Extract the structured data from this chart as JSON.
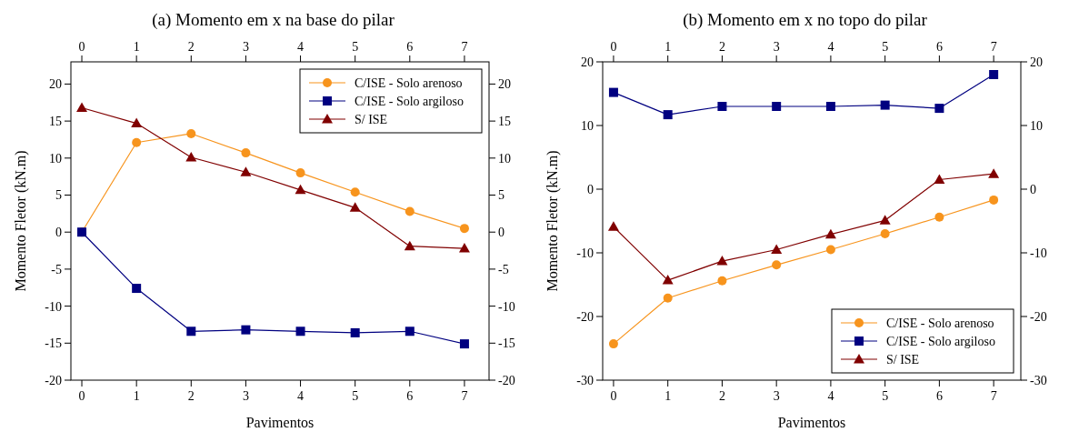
{
  "chart_data": [
    {
      "type": "line",
      "title": "(a) Momento em x na base do pilar",
      "xlabel": "Pavimentos",
      "ylabel": "Momento Fletor (kN.m)",
      "xlim": [
        -0.2,
        7.45
      ],
      "xticks": [
        0,
        1,
        2,
        3,
        4,
        5,
        6,
        7
      ],
      "x2lim": [
        -0.2,
        7.45
      ],
      "x2ticks": [
        0,
        1,
        2,
        3,
        4,
        5,
        6,
        7
      ],
      "ylim": [
        -20,
        23
      ],
      "yticks": [
        -20,
        -15,
        -10,
        -5,
        0,
        5,
        10,
        15,
        20
      ],
      "y2lim": [
        -20,
        23
      ],
      "y2ticks": [
        -20,
        -15,
        -10,
        -5,
        0,
        5,
        10,
        15,
        20
      ],
      "x": [
        0,
        1,
        2,
        3,
        4,
        5,
        6,
        7
      ],
      "legend": "top right",
      "grid": false,
      "line_style": "solid",
      "series": [
        {
          "name": "C/ISE - Solo arenoso",
          "color": "#f7941d",
          "marker": "circle",
          "values": [
            0,
            12.1,
            13.3,
            10.7,
            8,
            5.4,
            2.8,
            0.5
          ]
        },
        {
          "name": "C/ISE - Solo argiloso",
          "color": "#000080",
          "marker": "square",
          "values": [
            0,
            -7.6,
            -13.4,
            -13.2,
            -13.4,
            -13.6,
            -13.4,
            -15.1
          ]
        },
        {
          "name": "S/ ISE",
          "color": "#800000",
          "marker": "triangle",
          "values": [
            16.8,
            14.7,
            10.1,
            8.1,
            5.7,
            3.3,
            -1.9,
            -2.2
          ]
        }
      ]
    },
    {
      "type": "line",
      "title": "(b) Momento em x no topo do pilar",
      "xlabel": "Pavimentos",
      "ylabel": "Momento Fletor (kN.m)",
      "xlim": [
        -0.2,
        7.5
      ],
      "xticks": [
        0,
        1,
        2,
        3,
        4,
        5,
        6,
        7
      ],
      "x2lim": [
        -0.2,
        7.5
      ],
      "x2ticks": [
        0,
        1,
        2,
        3,
        4,
        5,
        6,
        7
      ],
      "ylim": [
        -30,
        20
      ],
      "yticks": [
        -30,
        -20,
        -10,
        0,
        10,
        20
      ],
      "y2lim": [
        -30,
        20
      ],
      "y2ticks": [
        -30,
        -20,
        -10,
        0,
        10,
        20
      ],
      "x": [
        0,
        1,
        2,
        3,
        4,
        5,
        6,
        7
      ],
      "legend": "bottom right",
      "grid": false,
      "line_style": "solid",
      "series": [
        {
          "name": "C/ISE - Solo arenoso",
          "color": "#f7941d",
          "marker": "circle",
          "values": [
            -24.3,
            -17.1,
            -14.4,
            -11.9,
            -9.5,
            -7,
            -4.4,
            -1.7
          ]
        },
        {
          "name": "C/ISE - Solo argiloso",
          "color": "#000080",
          "marker": "square",
          "values": [
            15.2,
            11.7,
            13,
            13,
            13,
            13.2,
            12.7,
            18
          ]
        },
        {
          "name": "S/ ISE",
          "color": "#800000",
          "marker": "triangle",
          "values": [
            -5.9,
            -14.3,
            -11.3,
            -9.5,
            -7.1,
            -4.9,
            1.5,
            2.4
          ]
        }
      ]
    }
  ]
}
